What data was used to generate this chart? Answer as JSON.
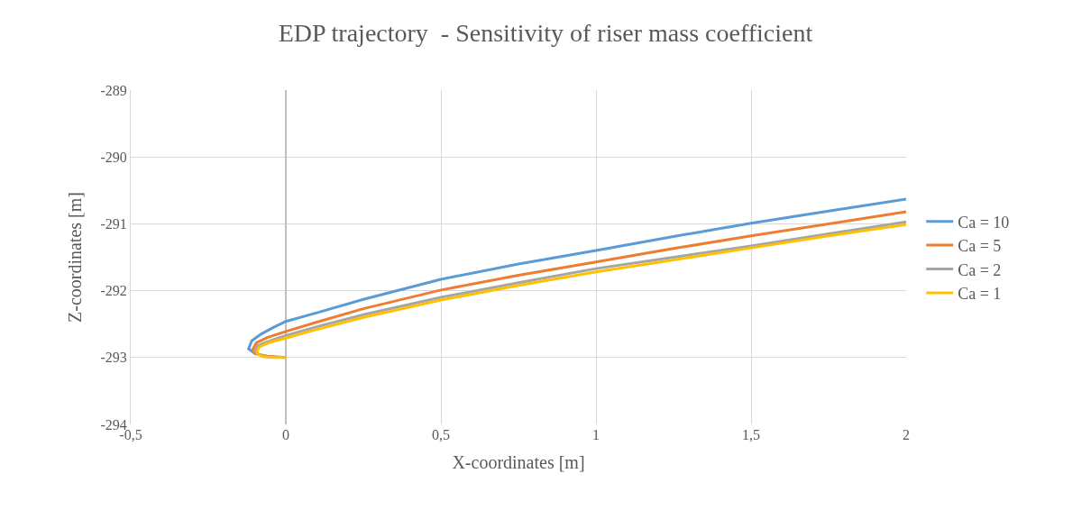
{
  "chart_data": {
    "type": "line",
    "title": "EDP trajectory  - Sensitivity of riser mass coefficient",
    "xlabel": "X-coordinates [m]",
    "ylabel": "Z-coordinates [m]",
    "xlim": [
      -0.5,
      2
    ],
    "xticks": [
      {
        "value": -0.5,
        "label": "-0,5"
      },
      0,
      {
        "value": 0.5,
        "label": "0,5"
      },
      1,
      {
        "value": 1.5,
        "label": "1,5"
      },
      2
    ],
    "ylim": [
      -294,
      -289
    ],
    "yticks": [
      -294,
      -293,
      -292,
      -291,
      -290,
      -289
    ],
    "grid": true,
    "legend": "right",
    "marker": "none",
    "line_style": "solid",
    "series": [
      {
        "name": "Ca = 10",
        "color": "#5b9bd5",
        "x": [
          -0.1,
          -0.12,
          -0.11,
          -0.08,
          -0.04,
          0,
          0.1,
          0.25,
          0.5,
          0.75,
          1,
          1.25,
          1.5,
          1.75,
          2
        ],
        "values": [
          -292.94,
          -292.87,
          -292.75,
          -292.65,
          -292.55,
          -292.46,
          -292.33,
          -292.13,
          -291.83,
          -291.6,
          -291.4,
          -291.19,
          -290.99,
          -290.81,
          -290.63
        ]
      },
      {
        "name": "Ca = 5",
        "color": "#ed7d31",
        "x": [
          0,
          -0.06,
          -0.1,
          -0.107,
          -0.095,
          -0.06,
          0,
          0.1,
          0.25,
          0.5,
          0.75,
          1,
          1.25,
          1.5,
          1.75,
          2
        ],
        "values": [
          -293,
          -292.98,
          -292.94,
          -292.88,
          -292.78,
          -292.7,
          -292.61,
          -292.47,
          -292.27,
          -291.99,
          -291.77,
          -291.57,
          -291.37,
          -291.18,
          -291,
          -290.82
        ]
      },
      {
        "name": "Ca = 2",
        "color": "#a5a5a5",
        "x": [
          0,
          -0.06,
          -0.09,
          -0.1,
          -0.09,
          -0.05,
          0,
          0.1,
          0.25,
          0.5,
          0.75,
          1,
          1.25,
          1.5,
          1.75,
          2
        ],
        "values": [
          -293,
          -292.99,
          -292.95,
          -292.9,
          -292.82,
          -292.75,
          -292.67,
          -292.54,
          -292.36,
          -292.1,
          -291.88,
          -291.67,
          -291.5,
          -291.33,
          -291.15,
          -290.97
        ]
      },
      {
        "name": "Ca = 1",
        "color": "#ffc000",
        "x": [
          0,
          -0.04,
          -0.07,
          -0.09,
          -0.093,
          -0.085,
          -0.05,
          0,
          0.1,
          0.25,
          0.5,
          0.75,
          1,
          1.25,
          1.5,
          1.75,
          2
        ],
        "values": [
          -293,
          -293,
          -292.99,
          -292.95,
          -292.9,
          -292.84,
          -292.77,
          -292.71,
          -292.58,
          -292.4,
          -292.14,
          -291.92,
          -291.72,
          -291.54,
          -291.36,
          -291.18,
          -291.01
        ]
      }
    ]
  }
}
